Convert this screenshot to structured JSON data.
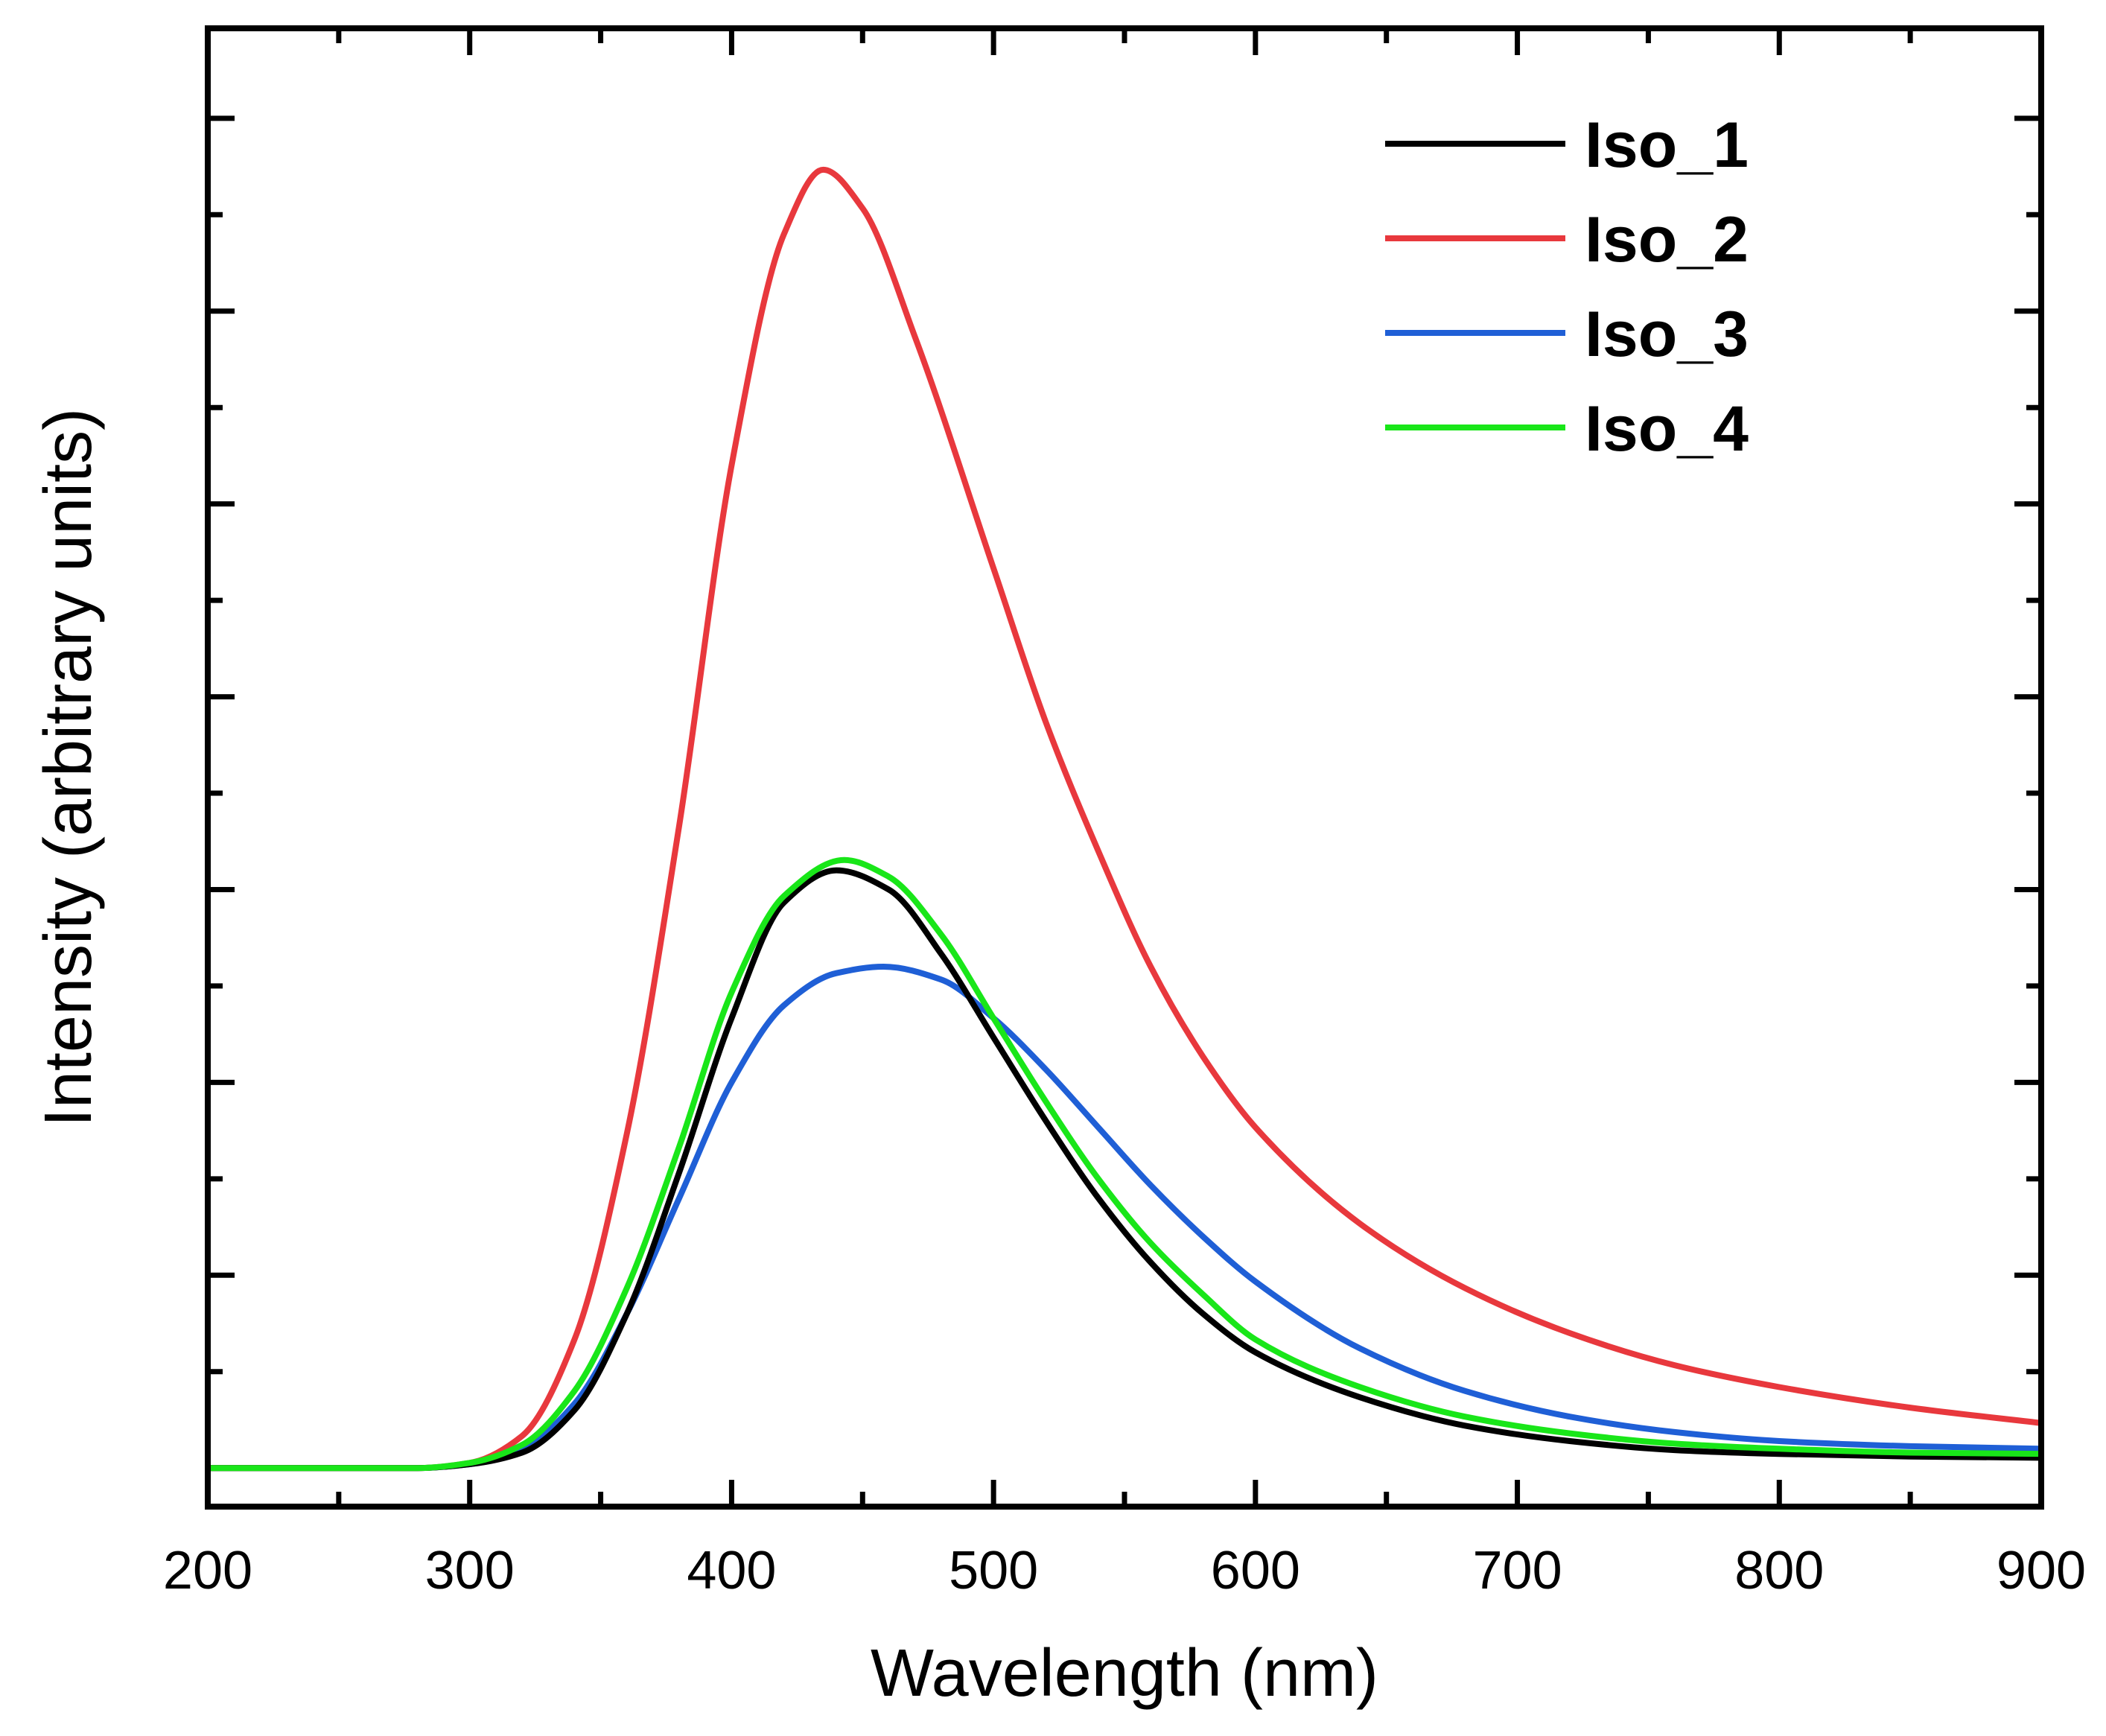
{
  "chart_data": {
    "type": "line",
    "title": "",
    "xlabel": "Wavelength (nm)",
    "ylabel": "Intensity (arbitrary units)",
    "xlim": [
      200,
      900
    ],
    "ylim": [
      -0.03,
      1.12
    ],
    "x_ticks": [
      200,
      300,
      400,
      500,
      600,
      700,
      800,
      900
    ],
    "x_tick_labels": [
      "200",
      "300",
      "400",
      "500",
      "600",
      "700",
      "800",
      "900"
    ],
    "y_tick_labels_shown": false,
    "y_major_ticks": [
      0.15,
      0.3,
      0.45,
      0.6,
      0.75,
      0.9,
      1.05
    ],
    "grid": false,
    "legend_position": "top-right",
    "series": [
      {
        "name": "Iso_1",
        "color": "#000000",
        "x": [
          200,
          280,
          300,
          320,
          340,
          360,
          380,
          400,
          420,
          440,
          460,
          480,
          500,
          520,
          540,
          560,
          580,
          600,
          640,
          680,
          720,
          760,
          800,
          850,
          900
        ],
        "y": [
          0.0,
          0.0,
          0.003,
          0.012,
          0.045,
          0.12,
          0.23,
          0.35,
          0.44,
          0.465,
          0.45,
          0.4,
          0.335,
          0.27,
          0.21,
          0.16,
          0.12,
          0.09,
          0.055,
          0.033,
          0.021,
          0.014,
          0.011,
          0.009,
          0.008
        ]
      },
      {
        "name": "Iso_2",
        "color": "#e8383d",
        "x": [
          200,
          280,
          300,
          320,
          340,
          360,
          380,
          400,
          420,
          435,
          450,
          470,
          500,
          520,
          540,
          560,
          580,
          600,
          640,
          680,
          720,
          760,
          800,
          850,
          900
        ],
        "y": [
          0.0,
          0.0,
          0.004,
          0.025,
          0.1,
          0.26,
          0.5,
          0.78,
          0.96,
          1.01,
          0.98,
          0.88,
          0.7,
          0.58,
          0.48,
          0.39,
          0.32,
          0.265,
          0.19,
          0.14,
          0.105,
          0.08,
          0.063,
          0.047,
          0.035
        ]
      },
      {
        "name": "Iso_3",
        "color": "#1f5fd6",
        "x": [
          200,
          280,
          300,
          320,
          340,
          360,
          380,
          400,
          420,
          440,
          458,
          480,
          500,
          520,
          540,
          560,
          580,
          600,
          640,
          680,
          720,
          760,
          800,
          850,
          900
        ],
        "y": [
          0.0,
          0.0,
          0.003,
          0.015,
          0.05,
          0.12,
          0.21,
          0.3,
          0.36,
          0.385,
          0.39,
          0.38,
          0.35,
          0.31,
          0.265,
          0.22,
          0.18,
          0.145,
          0.093,
          0.06,
          0.04,
          0.028,
          0.021,
          0.017,
          0.015
        ]
      },
      {
        "name": "Iso_4",
        "color": "#19e619",
        "x": [
          200,
          280,
          300,
          320,
          340,
          360,
          380,
          400,
          420,
          443,
          460,
          480,
          500,
          520,
          540,
          560,
          580,
          600,
          640,
          680,
          720,
          760,
          800,
          850,
          900
        ],
        "y": [
          0.0,
          0.0,
          0.004,
          0.018,
          0.06,
          0.14,
          0.25,
          0.37,
          0.445,
          0.473,
          0.46,
          0.415,
          0.35,
          0.285,
          0.225,
          0.175,
          0.135,
          0.1,
          0.063,
          0.04,
          0.027,
          0.019,
          0.015,
          0.012,
          0.011
        ]
      }
    ]
  }
}
